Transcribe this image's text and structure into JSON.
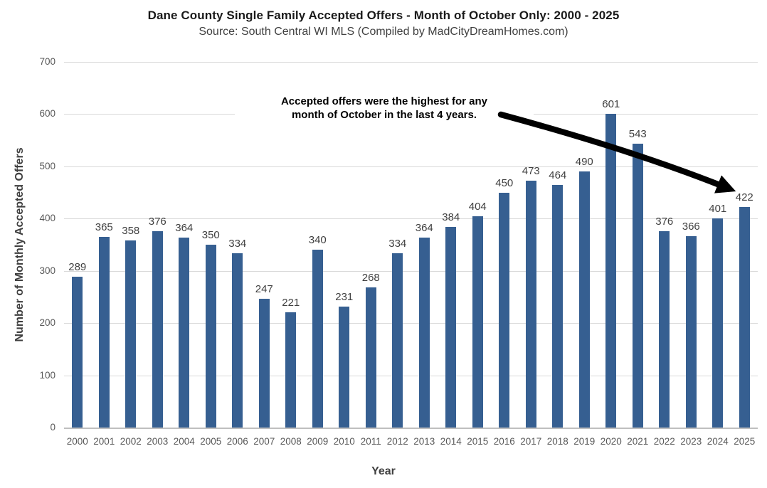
{
  "chart_data": {
    "type": "bar",
    "title": "Dane County Single Family Accepted Offers - Month of October Only: 2000 - 2025",
    "subtitle": "Source: South Central WI MLS (Compiled by MadCityDreamHomes.com)",
    "xlabel": "Year",
    "ylabel": "Number of Monthly Accepted Offers",
    "categories": [
      "2000",
      "2001",
      "2002",
      "2003",
      "2004",
      "2005",
      "2006",
      "2007",
      "2008",
      "2009",
      "2010",
      "2011",
      "2012",
      "2013",
      "2014",
      "2015",
      "2016",
      "2017",
      "2018",
      "2019",
      "2020",
      "2021",
      "2022",
      "2023",
      "2024",
      "2025"
    ],
    "values": [
      289,
      365,
      358,
      376,
      364,
      350,
      334,
      247,
      221,
      340,
      231,
      268,
      334,
      364,
      384,
      404,
      450,
      473,
      464,
      490,
      601,
      543,
      376,
      366,
      401,
      422
    ],
    "ylim": [
      0,
      700
    ],
    "yticks": [
      0,
      100,
      200,
      300,
      400,
      500,
      600,
      700
    ],
    "grid": true,
    "legend": false,
    "bar_color": "#365F91",
    "annotation": {
      "text": "Accepted offers were the highest for any\nmonth of October in the last 4 years.",
      "arrow_points_to_category": "2025",
      "arrow_color": "#000000"
    },
    "colors": {
      "gridline": "#D9D9D9",
      "axis_line": "#BFBFBF",
      "tick_label": "#595959",
      "value_label": "#404040",
      "title": "#1A1A1A",
      "subtitle": "#404040"
    }
  }
}
